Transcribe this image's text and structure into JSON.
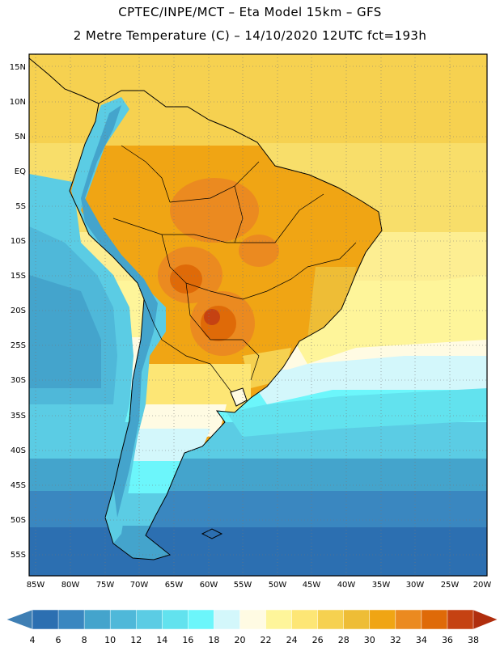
{
  "header": {
    "line1": "CPTEC/INPE/MCT –  Eta Model 15km – GFS",
    "line2": "2 Metre Temperature (C) – 14/10/2020 12UTC fct=193h"
  },
  "map": {
    "lat_labels": [
      "15N",
      "10N",
      "5N",
      "EQ",
      "5S",
      "10S",
      "15S",
      "20S",
      "25S",
      "30S",
      "35S",
      "40S",
      "45S",
      "50S",
      "55S"
    ],
    "lon_labels": [
      "85W",
      "80W",
      "75W",
      "70W",
      "65W",
      "60W",
      "55W",
      "50W",
      "45W",
      "40W",
      "35W",
      "30W",
      "25W",
      "20W"
    ],
    "colorbar": {
      "values": [
        "4",
        "6",
        "8",
        "10",
        "12",
        "14",
        "16",
        "18",
        "20",
        "22",
        "24",
        "26",
        "28",
        "30",
        "32",
        "34",
        "36",
        "38"
      ],
      "colors": [
        "#3f7fb4",
        "#2c6fb1",
        "#3a87c0",
        "#44a4cc",
        "#4fb8d9",
        "#5bcce4",
        "#62e2ee",
        "#6cf6fb",
        "#d3f7fb",
        "#fffbe3",
        "#fef59a",
        "#fde675",
        "#f6d150",
        "#eebd36",
        "#f0a514",
        "#eb8a20",
        "#df6a08",
        "#c54212",
        "#b02e0e"
      ]
    }
  }
}
